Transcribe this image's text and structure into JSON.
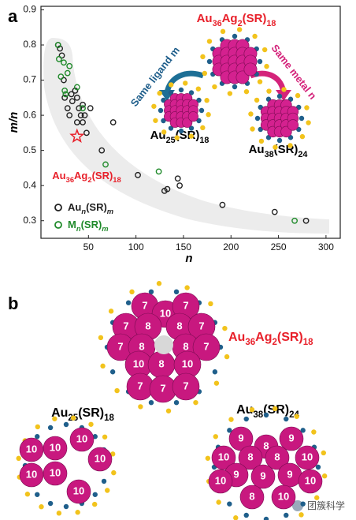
{
  "panel_labels": [
    "a",
    "b"
  ],
  "chart_data": {
    "type": "scatter",
    "xlabel": "n",
    "ylabel": "m/n",
    "xlim": [
      0,
      315
    ],
    "ylim": [
      0.25,
      0.91
    ],
    "xticks": [
      50,
      100,
      150,
      200,
      250,
      300
    ],
    "yticks": [
      0.3,
      0.4,
      0.5,
      0.6,
      0.7,
      0.8,
      0.9
    ],
    "series": [
      {
        "name": "Aun(SR)m",
        "color": "#222222",
        "marker": "circle",
        "legend": true,
        "x": [
          18,
          20,
          22,
          24,
          25,
          28,
          30,
          32,
          33,
          36,
          38,
          38,
          40,
          42,
          44,
          44,
          46,
          48,
          52,
          64,
          76,
          102,
          130,
          133,
          144,
          146,
          191,
          246,
          279
        ],
        "values": [
          0.8,
          0.79,
          0.77,
          0.7,
          0.65,
          0.62,
          0.6,
          0.66,
          0.64,
          0.67,
          0.65,
          0.58,
          0.62,
          0.6,
          0.58,
          0.63,
          0.6,
          0.55,
          0.62,
          0.5,
          0.58,
          0.43,
          0.385,
          0.39,
          0.42,
          0.4,
          0.345,
          0.325,
          0.3
        ]
      },
      {
        "name": "Mn(SR)m",
        "color": "#1f8a2a",
        "marker": "circle",
        "legend": true,
        "x": [
          18,
          19,
          21,
          24,
          25,
          26,
          28,
          30,
          38,
          44,
          68,
          124,
          267
        ],
        "values": [
          0.8,
          0.76,
          0.71,
          0.75,
          0.67,
          0.66,
          0.72,
          0.74,
          0.68,
          0.62,
          0.46,
          0.44,
          0.3
        ]
      },
      {
        "name": "Au36Ag2(SR)18",
        "color": "#e8202a",
        "marker": "star",
        "legend": false,
        "x": [
          38
        ],
        "values": [
          0.54
        ]
      }
    ]
  },
  "insets": {
    "title": "Au36Ag2(SR)18",
    "left_arrow": "Same ligand m",
    "right_arrow": "Same metal n",
    "left_product": "Au25(SR)18",
    "right_product": "Au38(SR)24"
  },
  "panel_b": {
    "structures": [
      {
        "name": "Au36Ag2(SR)18",
        "atom_labels": [
          "7",
          "10",
          "7",
          "7",
          "8",
          "8",
          "7",
          "7",
          "8",
          "8",
          "7",
          "10",
          "8",
          "10",
          "7",
          "7",
          "7"
        ]
      },
      {
        "name": "Au25(SR)18",
        "atom_labels": [
          "10",
          "10",
          "10",
          "10",
          "10",
          "10",
          "10"
        ]
      },
      {
        "name": "Au38(SR)24",
        "atom_labels": [
          "9",
          "9",
          "8",
          "10",
          "8",
          "8",
          "10",
          "9",
          "9",
          "9",
          "10",
          "8",
          "10",
          "10"
        ]
      }
    ]
  },
  "watermark": "团簇科学"
}
